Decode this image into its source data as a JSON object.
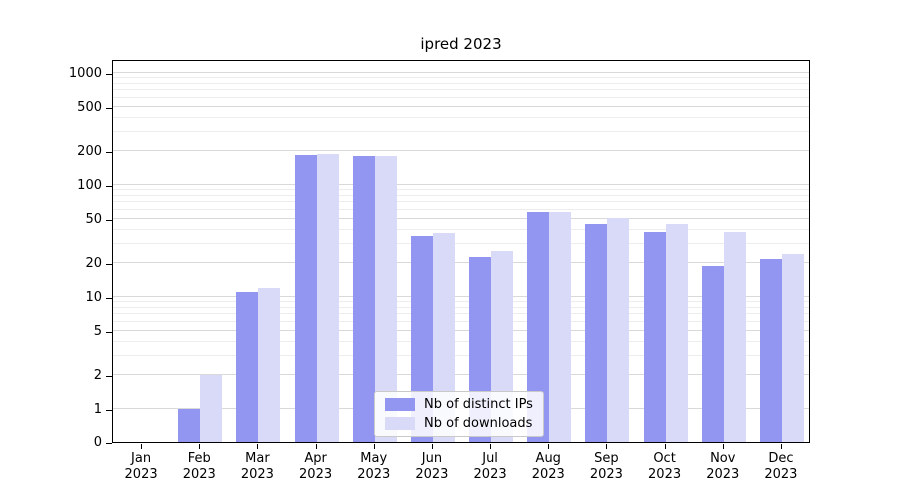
{
  "title": "ipred 2023",
  "chart_data": {
    "type": "bar",
    "title": "ipred 2023",
    "scale": "symlog",
    "grid": true,
    "legend_position": "lower center",
    "categories": [
      "Jan",
      "Feb",
      "Mar",
      "Apr",
      "May",
      "Jun",
      "Jul",
      "Aug",
      "Sep",
      "Oct",
      "Nov",
      "Dec"
    ],
    "category_year": "2023",
    "series": [
      {
        "name": "Nb of distinct IPs",
        "color": "#9396f0",
        "values": [
          0,
          1,
          11,
          185,
          180,
          35,
          23,
          57,
          45,
          38,
          19,
          22
        ]
      },
      {
        "name": "Nb of downloads",
        "color": "#d8daf8",
        "values": [
          0,
          2,
          12,
          190,
          180,
          37,
          26,
          58,
          51,
          45,
          38,
          24
        ]
      }
    ],
    "y_ticks": [
      0,
      1,
      2,
      5,
      10,
      20,
      50,
      100,
      200,
      500,
      1000
    ],
    "y_minor_ticks": [
      3,
      4,
      6,
      7,
      8,
      9,
      30,
      40,
      60,
      70,
      80,
      90,
      300,
      400,
      600,
      700,
      800,
      900
    ],
    "ylim": [
      0,
      1300
    ]
  },
  "legend": {
    "items": [
      "Nb of distinct IPs",
      "Nb of downloads"
    ]
  }
}
